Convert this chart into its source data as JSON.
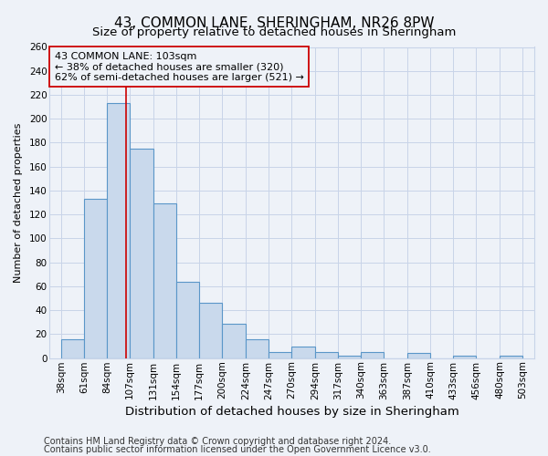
{
  "title": "43, COMMON LANE, SHERINGHAM, NR26 8PW",
  "subtitle": "Size of property relative to detached houses in Sheringham",
  "xlabel": "Distribution of detached houses by size in Sheringham",
  "ylabel": "Number of detached properties",
  "bin_edges": [
    38,
    61,
    84,
    107,
    131,
    154,
    177,
    200,
    224,
    247,
    270,
    294,
    317,
    340,
    363,
    387,
    410,
    433,
    456,
    480,
    503
  ],
  "bin_heights": [
    16,
    133,
    213,
    175,
    129,
    64,
    46,
    29,
    16,
    5,
    10,
    5,
    2,
    5,
    0,
    4,
    0,
    2,
    0,
    2
  ],
  "bar_face_color": "#c9d9ec",
  "bar_edge_color": "#5a96c8",
  "bar_linewidth": 0.8,
  "vline_x": 103,
  "vline_color": "#cc0000",
  "vline_linewidth": 1.2,
  "annotation_title": "43 COMMON LANE: 103sqm",
  "annotation_line1": "← 38% of detached houses are smaller (320)",
  "annotation_line2": "62% of semi-detached houses are larger (521) →",
  "annotation_box_edge": "#cc0000",
  "ylim": [
    0,
    260
  ],
  "yticks": [
    0,
    20,
    40,
    60,
    80,
    100,
    120,
    140,
    160,
    180,
    200,
    220,
    240,
    260
  ],
  "xtick_labels": [
    "38sqm",
    "61sqm",
    "84sqm",
    "107sqm",
    "131sqm",
    "154sqm",
    "177sqm",
    "200sqm",
    "224sqm",
    "247sqm",
    "270sqm",
    "294sqm",
    "317sqm",
    "340sqm",
    "363sqm",
    "387sqm",
    "410sqm",
    "433sqm",
    "456sqm",
    "480sqm",
    "503sqm"
  ],
  "grid_color": "#c8d4e8",
  "background_color": "#eef2f8",
  "footer_line1": "Contains HM Land Registry data © Crown copyright and database right 2024.",
  "footer_line2": "Contains public sector information licensed under the Open Government Licence v3.0.",
  "title_fontsize": 11,
  "subtitle_fontsize": 9.5,
  "xlabel_fontsize": 9.5,
  "ylabel_fontsize": 8,
  "tick_fontsize": 7.5,
  "annotation_fontsize": 8,
  "footer_fontsize": 7
}
